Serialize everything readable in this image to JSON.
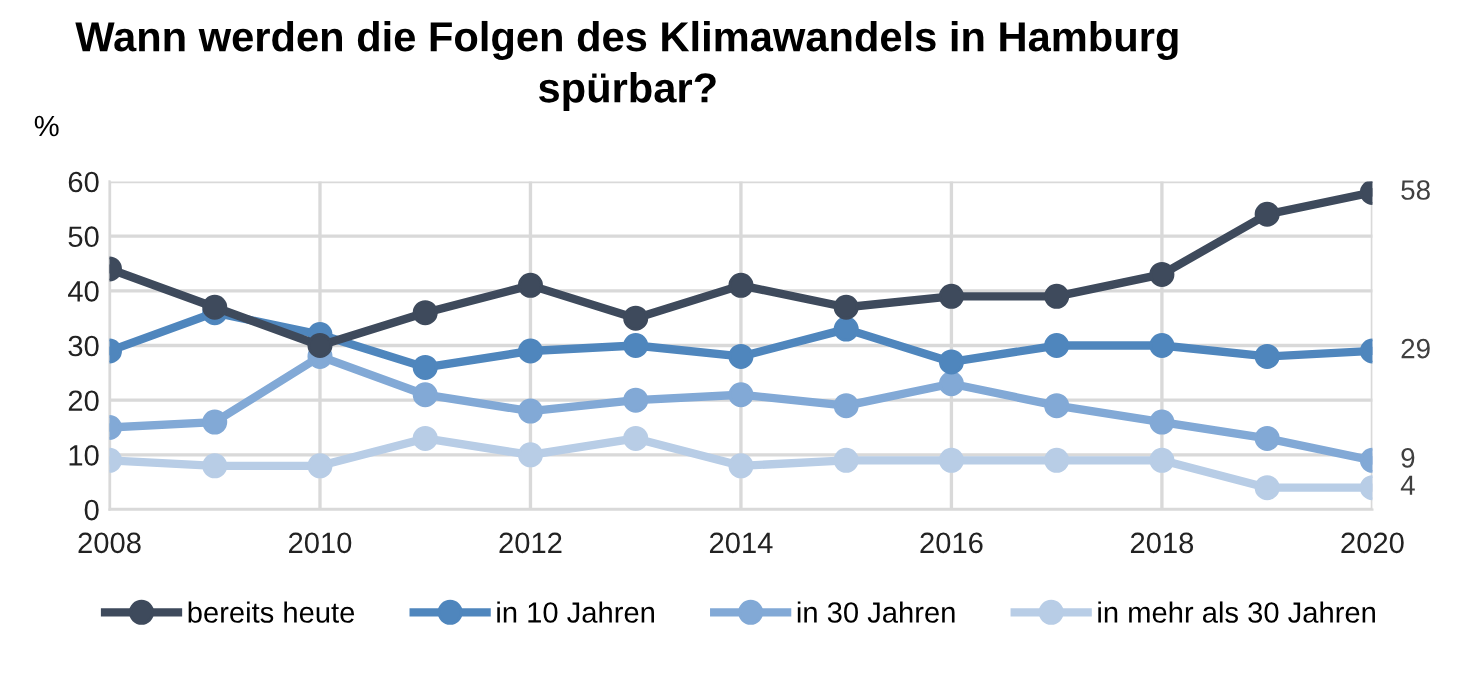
{
  "chart_data": {
    "type": "line",
    "title": "Wann werden die Folgen des Klimawandels in Hamburg\nspürbar?",
    "ylabel": "%",
    "x": [
      2008,
      2009,
      2010,
      2011,
      2012,
      2013,
      2014,
      2015,
      2016,
      2017,
      2018,
      2019,
      2020
    ],
    "xlim": [
      2008,
      2020
    ],
    "xticks": [
      2008,
      2010,
      2012,
      2014,
      2016,
      2018,
      2020
    ],
    "ylim": [
      0,
      60
    ],
    "yticks": [
      0,
      10,
      20,
      30,
      40,
      50,
      60
    ],
    "grid": true,
    "legend": "bottom",
    "marker": "circle",
    "line_style": "solid",
    "series": [
      {
        "name": "bereits heute",
        "color": "#3e4a5c",
        "values": [
          44,
          37,
          30,
          36,
          41,
          35,
          41,
          37,
          39,
          39,
          43,
          54,
          58
        ],
        "value_labels": [
          null,
          null,
          null,
          null,
          null,
          null,
          null,
          null,
          null,
          null,
          null,
          null,
          "58"
        ]
      },
      {
        "name": "in 10 Jahren",
        "color": "#4f86bd",
        "values": [
          29,
          36,
          32,
          26,
          29,
          30,
          28,
          33,
          27,
          30,
          30,
          28,
          29
        ],
        "value_labels": [
          null,
          null,
          null,
          null,
          null,
          null,
          null,
          null,
          null,
          null,
          null,
          null,
          "29"
        ]
      },
      {
        "name": "in 30 Jahren",
        "color": "#82a9d6",
        "values": [
          15,
          16,
          28,
          21,
          18,
          20,
          21,
          19,
          23,
          19,
          16,
          13,
          9
        ],
        "value_labels": [
          null,
          null,
          null,
          null,
          null,
          null,
          null,
          null,
          null,
          null,
          null,
          null,
          "9"
        ]
      },
      {
        "name": "in mehr als 30 Jahren",
        "color": "#b8cde6",
        "values": [
          9,
          8,
          8,
          13,
          10,
          13,
          8,
          9,
          9,
          9,
          9,
          4,
          4
        ],
        "value_labels": [
          null,
          null,
          null,
          null,
          null,
          null,
          null,
          null,
          null,
          null,
          null,
          null,
          "4"
        ]
      }
    ]
  }
}
